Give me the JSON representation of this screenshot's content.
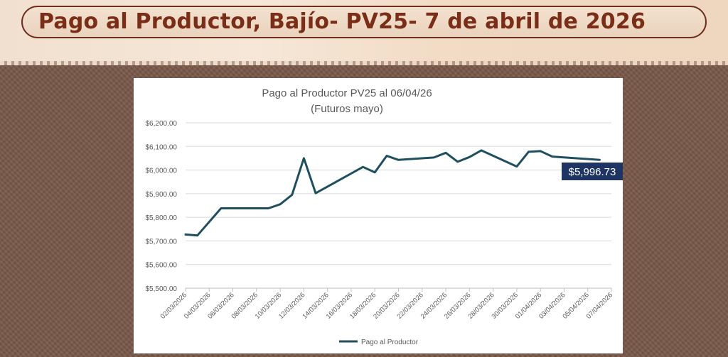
{
  "page": {
    "heading": "Pago al Productor, Bajío- PV25- 7 de abril de 2026"
  },
  "chart_data": {
    "type": "line",
    "title": "Pago al Productor PV25 al 06/04/26",
    "subtitle": "(Futuros mayo)",
    "xlabel": "",
    "ylabel": "",
    "ylim": [
      5500,
      6200
    ],
    "ytick_labels": [
      "$5,500.00",
      "$5,600.00",
      "$5,700.00",
      "$5,800.00",
      "$5,900.00",
      "$6,000.00",
      "$6,100.00",
      "$6,200.00"
    ],
    "yticks": [
      5500,
      5600,
      5700,
      5800,
      5900,
      6000,
      6100,
      6200
    ],
    "xtick_labels": [
      "02/03/2026",
      "04/03/2026",
      "06/03/2026",
      "08/03/2026",
      "10/03/2026",
      "12/03/2026",
      "14/03/2026",
      "16/03/2026",
      "18/03/2026",
      "20/03/2026",
      "22/03/2026",
      "24/03/2026",
      "26/03/2026",
      "28/03/2026",
      "30/03/2026",
      "01/04/2026",
      "03/04/2026",
      "05/04/2026",
      "07/04/2026"
    ],
    "series": [
      {
        "name": "Pago al Productor",
        "color": "#1f4e5f",
        "points": [
          {
            "x": "02/03/2026",
            "y": 5727
          },
          {
            "x": "03/03/2026",
            "y": 5723
          },
          {
            "x": "05/03/2026",
            "y": 5838
          },
          {
            "x": "09/03/2026",
            "y": 5838
          },
          {
            "x": "10/03/2026",
            "y": 5855
          },
          {
            "x": "11/03/2026",
            "y": 5895
          },
          {
            "x": "12/03/2026",
            "y": 6050
          },
          {
            "x": "13/03/2026",
            "y": 5902
          },
          {
            "x": "17/03/2026",
            "y": 6013
          },
          {
            "x": "18/03/2026",
            "y": 5990
          },
          {
            "x": "19/03/2026",
            "y": 6060
          },
          {
            "x": "20/03/2026",
            "y": 6043
          },
          {
            "x": "23/03/2026",
            "y": 6053
          },
          {
            "x": "24/03/2026",
            "y": 6073
          },
          {
            "x": "25/03/2026",
            "y": 6035
          },
          {
            "x": "26/03/2026",
            "y": 6055
          },
          {
            "x": "27/03/2026",
            "y": 6083
          },
          {
            "x": "30/03/2026",
            "y": 6015
          },
          {
            "x": "31/03/2026",
            "y": 6077
          },
          {
            "x": "01/04/2026",
            "y": 6080
          },
          {
            "x": "02/04/2026",
            "y": 6057
          },
          {
            "x": "06/04/2026",
            "y": 6043
          }
        ]
      }
    ],
    "annotation": {
      "text": "$5,996.73",
      "bg": "#1e3563",
      "color": "#ffffff"
    },
    "legend": {
      "label": "Pago al Productor",
      "position": "bottom"
    },
    "grid": true
  }
}
